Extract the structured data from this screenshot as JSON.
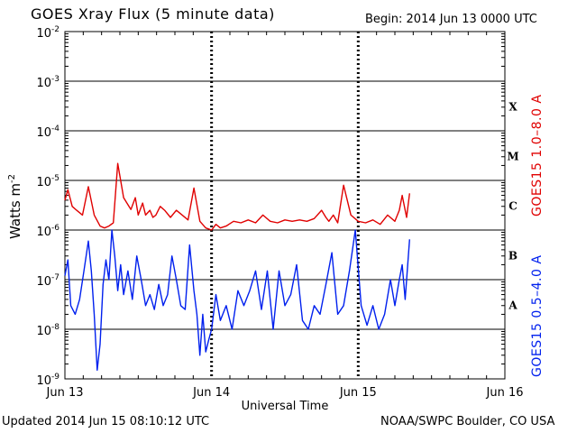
{
  "header": {
    "title": "GOES Xray Flux (5 minute data)",
    "begin": "Begin:  2014 Jun 13 0000 UTC"
  },
  "footer": {
    "updated": "Updated 2014 Jun 15 08:10:12 UTC",
    "credit": "NOAA/SWPC Boulder, CO USA"
  },
  "side_labels": {
    "long_channel": "GOES15 1.0–8.0 A",
    "short_channel": "GOES15 0.5–4.0 A"
  },
  "colors": {
    "long_channel": "#e00000",
    "short_channel": "#0020ee",
    "axes": "#000000",
    "background": "#ffffff"
  },
  "chart_data": {
    "type": "line",
    "title": "GOES Xray Flux (5 minute data)",
    "xlabel": "Universal Time",
    "ylabel": "Watts m⁻²",
    "y_scale": "log",
    "ylim": [
      1e-09,
      0.01
    ],
    "xlim": [
      "2014-06-13",
      "2014-06-16"
    ],
    "x_unit": "days since 2014 Jun 13 0000 UTC",
    "x_ticks": [
      "Jun 13",
      "Jun 14",
      "Jun 15",
      "Jun 16"
    ],
    "y_tick_exponents": [
      -9,
      -8,
      -7,
      -6,
      -5,
      -4,
      -3,
      -2
    ],
    "flare_classes": [
      "A",
      "B",
      "C",
      "M",
      "X"
    ],
    "grid": "horizontal lines at each decade",
    "series": [
      {
        "name": "GOES15 1.0–8.0 A",
        "color": "#e00000",
        "x": [
          0.0,
          0.02,
          0.05,
          0.08,
          0.12,
          0.16,
          0.2,
          0.24,
          0.27,
          0.3,
          0.33,
          0.36,
          0.4,
          0.45,
          0.48,
          0.5,
          0.53,
          0.55,
          0.58,
          0.6,
          0.62,
          0.65,
          0.68,
          0.72,
          0.76,
          0.8,
          0.84,
          0.88,
          0.92,
          0.96,
          1.0,
          1.03,
          1.06,
          1.1,
          1.15,
          1.2,
          1.25,
          1.3,
          1.35,
          1.4,
          1.45,
          1.5,
          1.55,
          1.6,
          1.65,
          1.7,
          1.75,
          1.78,
          1.8,
          1.83,
          1.86,
          1.9,
          1.95,
          2.0,
          2.05,
          2.1,
          2.15,
          2.2,
          2.25,
          2.28,
          2.3,
          2.33,
          2.35
        ],
        "y": [
          4e-06,
          6.5e-06,
          3e-06,
          2.5e-06,
          2e-06,
          7.5e-06,
          2e-06,
          1.2e-06,
          1.1e-06,
          1.2e-06,
          1.4e-06,
          2.2e-05,
          4.5e-06,
          2.6e-06,
          4.5e-06,
          2e-06,
          3.5e-06,
          2e-06,
          2.5e-06,
          1.8e-06,
          2e-06,
          3e-06,
          2.5e-06,
          1.8e-06,
          2.5e-06,
          2e-06,
          1.6e-06,
          7e-06,
          1.5e-06,
          1.1e-06,
          1e-06,
          1.3e-06,
          1.1e-06,
          1.2e-06,
          1.5e-06,
          1.4e-06,
          1.6e-06,
          1.4e-06,
          2e-06,
          1.5e-06,
          1.4e-06,
          1.6e-06,
          1.5e-06,
          1.6e-06,
          1.5e-06,
          1.7e-06,
          2.5e-06,
          1.8e-06,
          1.5e-06,
          2e-06,
          1.4e-06,
          8e-06,
          2e-06,
          1.5e-06,
          1.4e-06,
          1.6e-06,
          1.3e-06,
          2e-06,
          1.5e-06,
          2.5e-06,
          5e-06,
          1.8e-06,
          5.5e-06
        ]
      },
      {
        "name": "GOES15 0.5–4.0 A",
        "color": "#0020ee",
        "x": [
          0.0,
          0.02,
          0.04,
          0.07,
          0.1,
          0.13,
          0.16,
          0.18,
          0.2,
          0.22,
          0.24,
          0.26,
          0.28,
          0.3,
          0.32,
          0.34,
          0.36,
          0.38,
          0.4,
          0.43,
          0.46,
          0.49,
          0.52,
          0.55,
          0.58,
          0.61,
          0.64,
          0.67,
          0.7,
          0.73,
          0.76,
          0.79,
          0.82,
          0.85,
          0.88,
          0.9,
          0.92,
          0.94,
          0.96,
          0.98,
          1.0,
          1.03,
          1.06,
          1.1,
          1.14,
          1.18,
          1.22,
          1.26,
          1.3,
          1.34,
          1.38,
          1.42,
          1.46,
          1.5,
          1.54,
          1.58,
          1.62,
          1.66,
          1.7,
          1.74,
          1.78,
          1.82,
          1.86,
          1.9,
          1.94,
          1.98,
          2.02,
          2.06,
          2.1,
          2.14,
          2.18,
          2.22,
          2.25,
          2.28,
          2.3,
          2.32,
          2.35
        ],
        "y": [
          1.2e-07,
          2.5e-07,
          3e-08,
          2e-08,
          4e-08,
          1.5e-07,
          6e-07,
          1.5e-07,
          2e-08,
          1.5e-09,
          5e-09,
          8e-08,
          2.5e-07,
          1e-07,
          1e-06,
          3e-07,
          6e-08,
          2e-07,
          5e-08,
          1.5e-07,
          4e-08,
          3e-07,
          1e-07,
          3e-08,
          5e-08,
          2.5e-08,
          8e-08,
          3e-08,
          5e-08,
          3e-07,
          1e-07,
          3e-08,
          2.5e-08,
          5e-07,
          6e-08,
          2e-08,
          3e-09,
          2e-08,
          3.5e-09,
          6e-09,
          1e-08,
          5e-08,
          1.5e-08,
          3e-08,
          1e-08,
          6e-08,
          3e-08,
          6e-08,
          1.5e-07,
          2.5e-08,
          1.5e-07,
          1e-08,
          1.5e-07,
          3e-08,
          5e-08,
          2e-07,
          1.5e-08,
          1e-08,
          3e-08,
          2e-08,
          8e-08,
          3.5e-07,
          2e-08,
          3e-08,
          1.5e-07,
          1e-06,
          3e-08,
          1.2e-08,
          3e-08,
          1e-08,
          2e-08,
          1e-07,
          3e-08,
          1e-07,
          2e-07,
          4e-08,
          6.5e-07
        ]
      }
    ]
  }
}
